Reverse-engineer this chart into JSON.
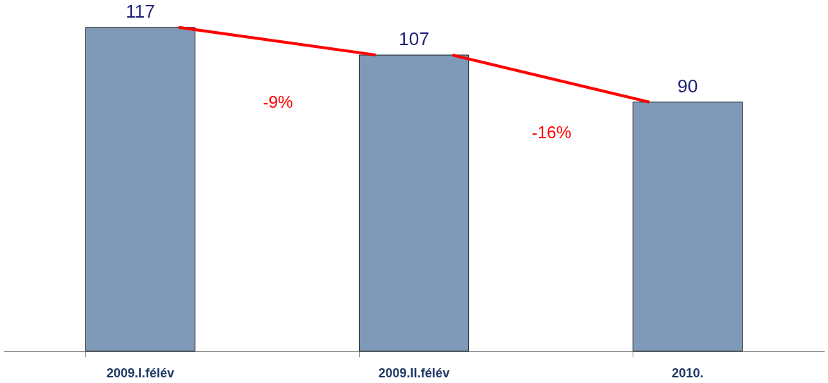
{
  "chart_data": {
    "type": "bar",
    "categories": [
      "2009.I.félév",
      "2009.II.félév",
      "2010."
    ],
    "values": [
      117,
      107,
      90
    ],
    "color": "#7f9ab8",
    "data_labels": true,
    "grid": false,
    "tick_labels": "x",
    "annotations": [
      "-9%",
      "-16%"
    ]
  }
}
